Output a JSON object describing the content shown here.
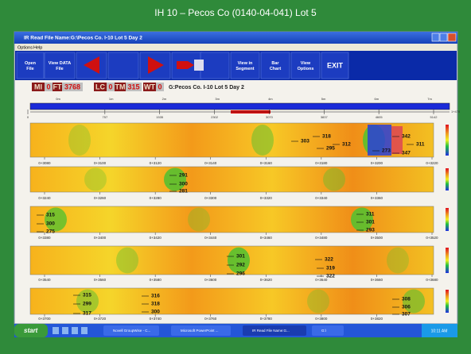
{
  "header": {
    "title": "IH 10 – Pecos Co (0140-04-041) Lot 5"
  },
  "window": {
    "title": "IR Read File Name:G:\\Pecos Co. I-10 Lot 5 Day 2",
    "menu": [
      "Options",
      "Help"
    ],
    "toolbar": [
      "Open File",
      "View DATA File",
      "View in Segment",
      "Bar Chart",
      "View Options",
      "EXIT"
    ],
    "status": [
      "MI",
      "0",
      "FT",
      "3768",
      "LC",
      "0",
      "TM",
      "315",
      "WT",
      "0",
      "G:Pecos Co. I-10 Lot 5 Day 2"
    ],
    "overview": {
      "top": [
        "0m",
        "1m",
        "2m",
        "3m",
        "4m",
        "5m",
        "6m",
        "7m"
      ],
      "bottom": [
        "0",
        "757",
        "1535",
        "2302",
        "3070",
        "3837",
        "4605",
        "5142"
      ],
      "end": "1+478"
    },
    "strips": [
      {
        "ticks": [
          "0+3080",
          "0+3100",
          "0+3120",
          "0+3140",
          "0+3160",
          "0+3180",
          "0+3200",
          "0+3220"
        ],
        "labels": [
          "318",
          "303",
          "312",
          "295",
          "342",
          "311",
          "273",
          "347"
        ]
      },
      {
        "ticks": [
          "0+3240",
          "0+3260",
          "0+3280",
          "0+3300",
          "0+3320",
          "0+3340",
          "0+3360"
        ],
        "labels": [
          "291",
          "300",
          "281"
        ]
      },
      {
        "ticks": [
          "0+3380",
          "0+3400",
          "0+3420",
          "0+3440",
          "0+3460",
          "0+3480",
          "0+3500",
          "0+3520"
        ],
        "labels": [
          "315",
          "300",
          "275",
          "311",
          "301",
          "293"
        ]
      },
      {
        "ticks": [
          "0+3540",
          "0+3560",
          "0+3580",
          "0+3600",
          "0+3620",
          "0+3640",
          "0+3660",
          "0+3680"
        ],
        "labels": [
          "301",
          "292",
          "296",
          "322",
          "319",
          "322"
        ]
      },
      {
        "ticks": [
          "0+3700",
          "0+3720",
          "0+3740",
          "0+3760",
          "0+3780",
          "0+3800",
          "0+3820"
        ],
        "labels": [
          "315",
          "299",
          "317",
          "316",
          "318",
          "300",
          "308",
          "306",
          "307"
        ]
      }
    ]
  },
  "taskbar": {
    "start": "start",
    "items": [
      "Novell GroupWise - C...",
      "Microsoft PowerPoint ...",
      "IR Read File Name:G...",
      "G:\\"
    ],
    "clock": "10:11 AM"
  }
}
